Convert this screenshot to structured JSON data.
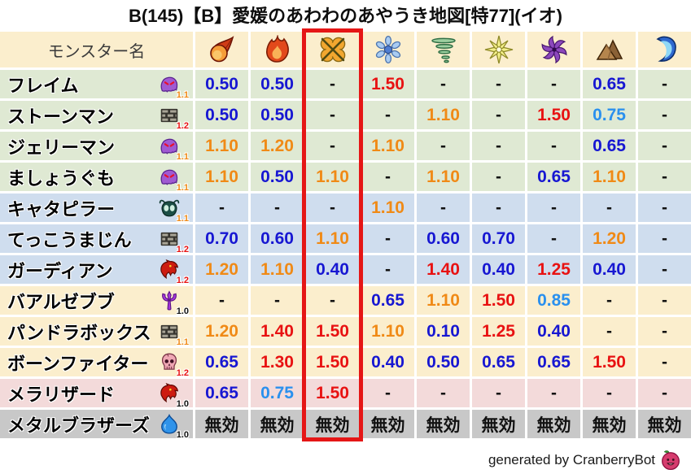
{
  "title": "B(145)【B】愛媛のあわわのあやうき地図[特77](イオ)",
  "footer": {
    "credit": "generated by CranberryBot",
    "icon": "cranberry-icon"
  },
  "colors": {
    "value_low": "#1717d2",
    "value_midlow": "#2a90ee",
    "value_midhigh": "#f08a16",
    "value_high": "#e81212",
    "value_neutral": "#111111",
    "header_bg": "#fbeecd",
    "highlight_border": "#e51616",
    "row_tints": {
      "green": "#dfe9d3",
      "blue": "#cfddee",
      "cream": "#fbeecd",
      "pink": "#f3dada",
      "gray": "#c8c8c8"
    },
    "level_colors": {
      "1.0": "#111111",
      "1.1": "#f08a16",
      "1.2": "#e81212"
    }
  },
  "chart_data": {
    "type": "table",
    "title": "B(145)【B】愛媛のあわわのあやうき地図[特77](イオ)",
    "columns": {
      "name_header": "モンスター名",
      "elements": [
        "fireball",
        "flame",
        "explosion",
        "ice",
        "wind",
        "light",
        "dark",
        "earth",
        "water"
      ]
    },
    "highlight": {
      "element_index": 2
    },
    "immune_text": "無効",
    "rows": [
      {
        "name": "フレイム",
        "family": "ghost",
        "level": "1.1",
        "tint": "green",
        "values": [
          "0.50",
          "0.50",
          "-",
          "1.50",
          "-",
          "-",
          "-",
          "0.65",
          "-"
        ]
      },
      {
        "name": "ストーンマン",
        "family": "bricks",
        "level": "1.2",
        "tint": "green",
        "values": [
          "0.50",
          "0.50",
          "-",
          "-",
          "1.10",
          "-",
          "1.50",
          "0.75",
          "-"
        ]
      },
      {
        "name": "ジェリーマン",
        "family": "ghost",
        "level": "1.1",
        "tint": "green",
        "values": [
          "1.10",
          "1.20",
          "-",
          "1.10",
          "-",
          "-",
          "-",
          "0.65",
          "-"
        ]
      },
      {
        "name": "ましょうぐも",
        "family": "ghost",
        "level": "1.1",
        "tint": "green",
        "values": [
          "1.10",
          "0.50",
          "1.10",
          "-",
          "1.10",
          "-",
          "0.65",
          "1.10",
          "-"
        ]
      },
      {
        "name": "キャタピラー",
        "family": "bug",
        "level": "1.1",
        "tint": "blue",
        "values": [
          "-",
          "-",
          "-",
          "1.10",
          "-",
          "-",
          "-",
          "-",
          "-"
        ]
      },
      {
        "name": "てっこうまじん",
        "family": "bricks",
        "level": "1.2",
        "tint": "blue",
        "values": [
          "0.70",
          "0.60",
          "1.10",
          "-",
          "0.60",
          "0.70",
          "-",
          "1.20",
          "-"
        ]
      },
      {
        "name": "ガーディアン",
        "family": "dragon",
        "level": "1.2",
        "tint": "blue",
        "values": [
          "1.20",
          "1.10",
          "0.40",
          "-",
          "1.40",
          "0.40",
          "1.25",
          "0.40",
          "-"
        ]
      },
      {
        "name": "バアルゼブブ",
        "family": "devil",
        "level": "1.0",
        "tint": "cream",
        "values": [
          "-",
          "-",
          "-",
          "0.65",
          "1.10",
          "1.50",
          "0.85",
          "-",
          "-"
        ]
      },
      {
        "name": "パンドラボックス",
        "family": "bricks",
        "level": "1.1",
        "tint": "cream",
        "values": [
          "1.20",
          "1.40",
          "1.50",
          "1.10",
          "0.10",
          "1.25",
          "0.40",
          "-",
          "-"
        ]
      },
      {
        "name": "ボーンファイター",
        "family": "skull",
        "level": "1.2",
        "tint": "cream",
        "values": [
          "0.65",
          "1.30",
          "1.50",
          "0.40",
          "0.50",
          "0.65",
          "0.65",
          "1.50",
          "-"
        ]
      },
      {
        "name": "メラリザード",
        "family": "dragon",
        "level": "1.0",
        "tint": "pink",
        "values": [
          "0.65",
          "0.75",
          "1.50",
          "-",
          "-",
          "-",
          "-",
          "-",
          "-"
        ]
      },
      {
        "name": "メタルブラザーズ",
        "family": "slime",
        "level": "1.0",
        "tint": "gray",
        "values": [
          "無効",
          "無効",
          "無効",
          "無効",
          "無効",
          "無効",
          "無効",
          "無効",
          "無効"
        ]
      }
    ]
  }
}
